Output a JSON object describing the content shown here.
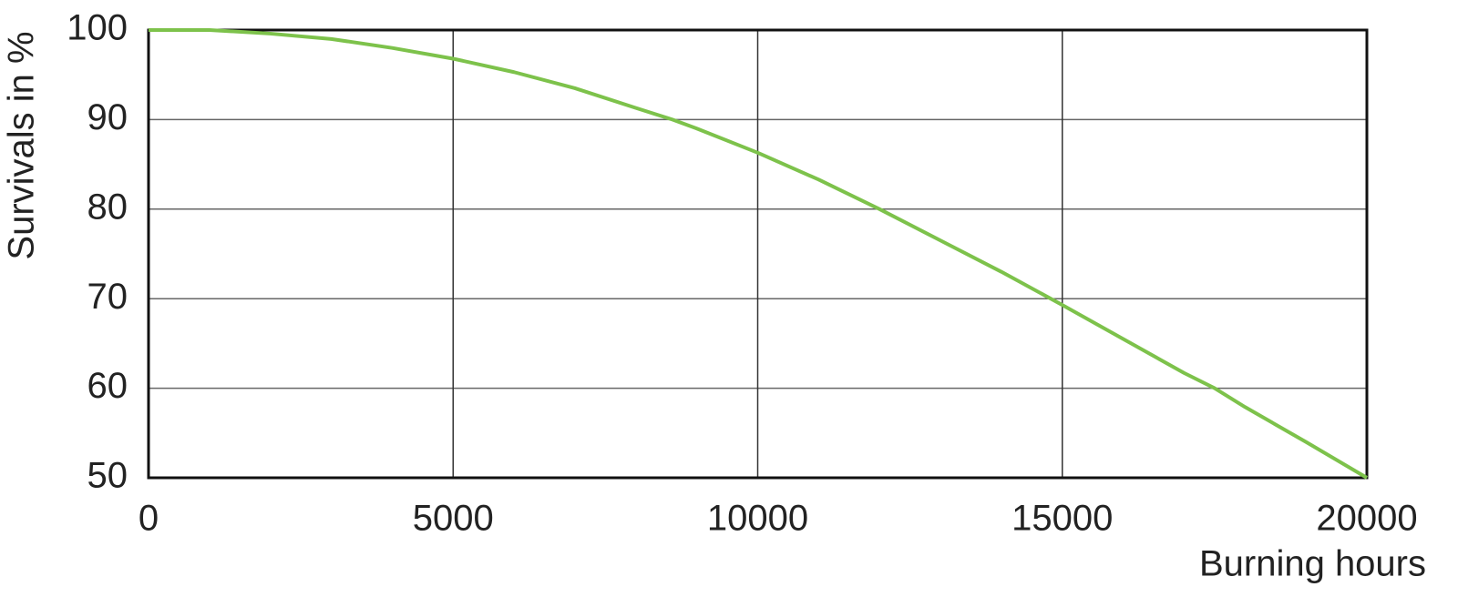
{
  "chart_data": {
    "type": "line",
    "y_label": "Survivals in %",
    "x_label": "Burning hours",
    "x": [
      0,
      1000,
      2000,
      3000,
      4000,
      5000,
      6000,
      7000,
      8000,
      8600,
      9000,
      10000,
      11000,
      12000,
      13000,
      14000,
      15000,
      16000,
      17000,
      17500,
      18000,
      19000,
      20000
    ],
    "values": [
      100,
      100,
      99.6,
      99,
      98,
      96.8,
      95.3,
      93.5,
      91.3,
      90,
      89,
      86.3,
      83.3,
      80,
      76.5,
      73,
      69.3,
      65.5,
      61.7,
      60,
      57.9,
      54,
      50
    ],
    "color": "#7dc24b",
    "xlim": [
      0,
      20000
    ],
    "xticks": [
      0,
      5000,
      10000,
      15000,
      20000
    ],
    "ylim": [
      50,
      100
    ],
    "yticks": [
      50,
      60,
      70,
      80,
      90,
      100
    ],
    "grid": true
  }
}
